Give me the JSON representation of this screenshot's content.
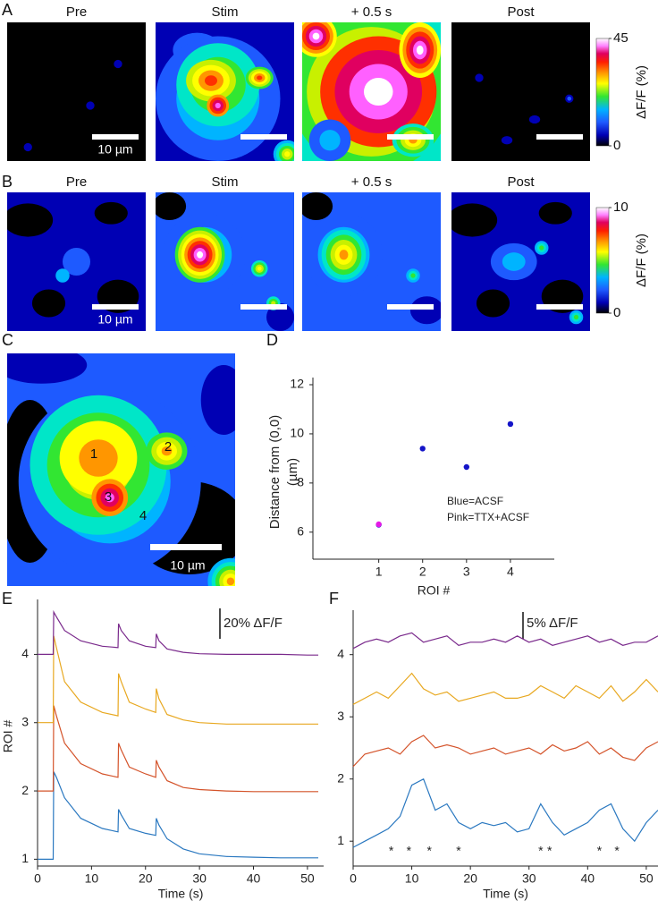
{
  "panel_labels": [
    "A",
    "B",
    "C",
    "D",
    "E",
    "F"
  ],
  "panel_a": {
    "titles": [
      "Pre",
      "Stim",
      "+ 0.5 s",
      "Post"
    ],
    "scale_label": "10 µm",
    "colorbar": {
      "label": "ΔF/F (%)",
      "lim": [
        0,
        45
      ],
      "ticks": [
        0,
        45
      ]
    }
  },
  "panel_b": {
    "titles": [
      "Pre",
      "Stim",
      "+ 0.5 s",
      "Post"
    ],
    "scale_label": "10 µm",
    "colorbar": {
      "label": "ΔF/F (%)",
      "lim": [
        0,
        10
      ],
      "ticks": [
        0,
        10
      ]
    }
  },
  "panel_c": {
    "roi_labels": [
      "1",
      "2",
      "3",
      "4"
    ],
    "scale_label": "10 µm"
  },
  "chart_data": [
    {
      "type": "scatter",
      "ylabel": [
        "Distance from (0,0)",
        "(µm)"
      ],
      "xlabel": "ROI #",
      "xlim": [
        -0.5,
        5
      ],
      "xticks": [
        1,
        2,
        3,
        4
      ],
      "ylim": [
        4.9,
        12
      ],
      "yticks": [
        6,
        8,
        10,
        12
      ],
      "series": [
        {
          "name": "Blue=ACSF",
          "color": "#1414c8",
          "x": [
            1,
            2,
            3,
            4
          ],
          "values": [
            6.3,
            9.4,
            8.65,
            10.4
          ]
        },
        {
          "name": "Pink=TTX+ACSF",
          "color": "#e619e6",
          "x": [
            1
          ],
          "values": [
            6.32
          ]
        }
      ]
    },
    {
      "type": "line",
      "ylabel": "ROI #",
      "xlabel": "Time (s)",
      "scale_label": "20% ΔF/F",
      "xlim": [
        0,
        53
      ],
      "xticks": [
        0,
        10,
        20,
        30,
        40,
        50
      ],
      "ylim": [
        0.9,
        4.7
      ],
      "yticks": [
        1,
        2,
        3,
        4
      ],
      "x": [
        0,
        2.9,
        3,
        3.5,
        5,
        8,
        12,
        14.9,
        15,
        15.5,
        17,
        20,
        21.9,
        22,
        22.5,
        24,
        27,
        30,
        35,
        40,
        45,
        50,
        52
      ],
      "series": [
        {
          "color": "#2a78c0",
          "values": [
            1,
            1,
            2.28,
            2.2,
            1.9,
            1.6,
            1.45,
            1.4,
            1.73,
            1.65,
            1.45,
            1.38,
            1.35,
            1.6,
            1.5,
            1.3,
            1.15,
            1.08,
            1.04,
            1.03,
            1.02,
            1.02,
            1.02
          ]
        },
        {
          "color": "#d4532a",
          "values": [
            2,
            2,
            3.25,
            3.1,
            2.7,
            2.4,
            2.25,
            2.2,
            2.7,
            2.6,
            2.35,
            2.25,
            2.2,
            2.45,
            2.35,
            2.15,
            2.05,
            2.02,
            2,
            1.99,
            1.99,
            1.99,
            1.99
          ]
        },
        {
          "color": "#e8a820",
          "values": [
            3,
            3,
            4.27,
            4.1,
            3.6,
            3.3,
            3.15,
            3.1,
            3.72,
            3.6,
            3.3,
            3.2,
            3.15,
            3.5,
            3.35,
            3.12,
            3.04,
            3,
            2.98,
            2.98,
            2.98,
            2.98,
            2.98
          ]
        },
        {
          "color": "#7a2a8c",
          "values": [
            4,
            4,
            4.62,
            4.55,
            4.35,
            4.2,
            4.12,
            4.1,
            4.45,
            4.35,
            4.2,
            4.12,
            4.1,
            4.3,
            4.2,
            4.08,
            4.03,
            4.01,
            4,
            4,
            4,
            3.99,
            3.99
          ]
        }
      ]
    },
    {
      "type": "line",
      "xlabel": "Time (s)",
      "scale_label": "5% ΔF/F",
      "xlim": [
        0,
        52
      ],
      "xticks": [
        0,
        10,
        20,
        30,
        40,
        50
      ],
      "ylim": [
        0.6,
        4.6
      ],
      "yticks": [
        1,
        2,
        3,
        4
      ],
      "x": [
        0,
        2,
        4,
        6,
        8,
        10,
        12,
        14,
        16,
        18,
        20,
        22,
        24,
        26,
        28,
        30,
        32,
        34,
        36,
        38,
        40,
        42,
        44,
        46,
        48,
        50,
        52
      ],
      "asterisks": {
        "label": "*",
        "x": [
          6.5,
          9.5,
          13,
          18,
          32,
          33.5,
          42,
          45
        ]
      },
      "series": [
        {
          "color": "#2a78c0",
          "values": [
            0.9,
            1,
            1.1,
            1.2,
            1.4,
            1.9,
            2,
            1.5,
            1.6,
            1.3,
            1.2,
            1.3,
            1.25,
            1.3,
            1.15,
            1.2,
            1.6,
            1.3,
            1.1,
            1.2,
            1.3,
            1.5,
            1.6,
            1.2,
            1,
            1.3,
            1.5
          ]
        },
        {
          "color": "#d4532a",
          "values": [
            2.2,
            2.4,
            2.45,
            2.5,
            2.4,
            2.6,
            2.7,
            2.5,
            2.55,
            2.5,
            2.4,
            2.45,
            2.5,
            2.4,
            2.45,
            2.5,
            2.4,
            2.55,
            2.45,
            2.5,
            2.6,
            2.4,
            2.5,
            2.35,
            2.3,
            2.5,
            2.6
          ]
        },
        {
          "color": "#e8a820",
          "values": [
            3.2,
            3.3,
            3.4,
            3.3,
            3.5,
            3.7,
            3.45,
            3.35,
            3.4,
            3.25,
            3.3,
            3.35,
            3.4,
            3.3,
            3.3,
            3.35,
            3.5,
            3.4,
            3.3,
            3.5,
            3.4,
            3.3,
            3.5,
            3.25,
            3.4,
            3.6,
            3.4
          ]
        },
        {
          "color": "#7a2a8c",
          "values": [
            4.1,
            4.2,
            4.25,
            4.2,
            4.3,
            4.35,
            4.2,
            4.25,
            4.3,
            4.15,
            4.2,
            4.2,
            4.25,
            4.2,
            4.3,
            4.2,
            4.25,
            4.15,
            4.2,
            4.25,
            4.3,
            4.2,
            4.25,
            4.15,
            4.2,
            4.2,
            4.3
          ]
        }
      ]
    }
  ]
}
